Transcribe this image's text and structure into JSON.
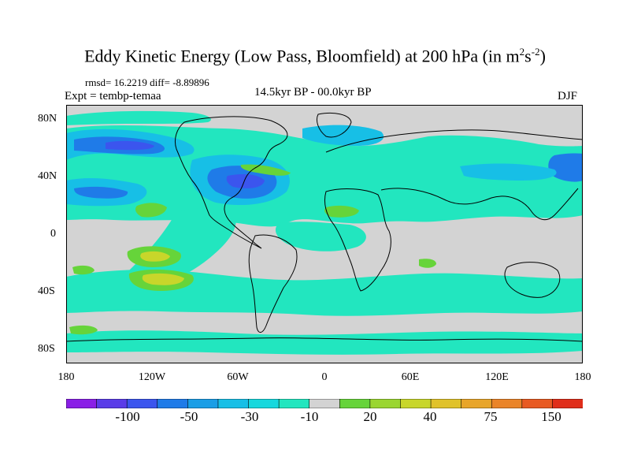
{
  "title": {
    "main": "Eddy Kinetic Energy (Low Pass, Bloomfield) at 200 hPa (in m",
    "sup1": "2",
    "mid": "s",
    "sup2": "-2",
    "end": ")"
  },
  "stats": "rmsd= 16.2219 diff= -8.89896",
  "expt": "Expt = tembp-temaa",
  "period": "14.5kyr BP - 00.0kyr BP",
  "season": "DJF",
  "lat_labels": [
    "80N",
    "40N",
    "0",
    "40S",
    "80S"
  ],
  "lon_labels": [
    "180",
    "120W",
    "60W",
    "0",
    "60E",
    "120E",
    "180"
  ],
  "colorbar": {
    "labels": [
      "-100",
      "-50",
      "-30",
      "-10",
      "20",
      "40",
      "75",
      "150"
    ],
    "colors": [
      "#8a1fe6",
      "#5a3ce8",
      "#3b55ee",
      "#1f7be8",
      "#1a9ee6",
      "#17bfe6",
      "#16d8dd",
      "#22e6bf",
      "#d3d3d3",
      "#66d43a",
      "#9ad630",
      "#c8d62a",
      "#e0c22a",
      "#e8a52a",
      "#ea8428",
      "#e85a22",
      "#e02e1a"
    ]
  },
  "map_colors": {
    "neutral": "#d3d3d3",
    "teal": "#22e6bf",
    "cyan": "#17bfe6",
    "blue": "#1f7be8",
    "deep_blue": "#3b55ee",
    "green": "#66d43a",
    "yellow_green": "#c8d62a",
    "coast": "#000000"
  }
}
